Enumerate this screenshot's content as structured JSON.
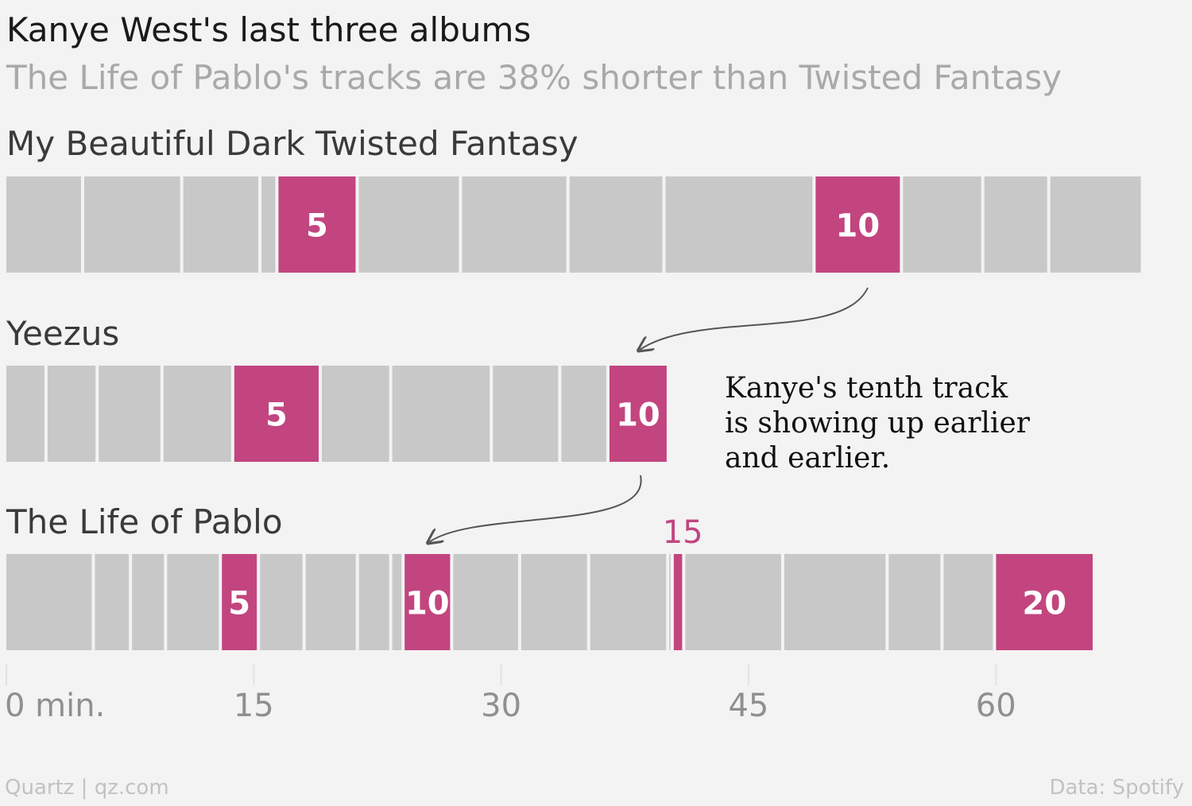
{
  "title": "Kanye West's last three albums",
  "subtitle": "The Life of Pablo's tracks are 38% shorter than Twisted Fantasy",
  "footer": {
    "source_left": "Quartz | qz.com",
    "source_right": "Data: Spotify"
  },
  "annotation": {
    "lines": [
      "Kanye's tenth track",
      "is showing up earlier",
      "and earlier."
    ]
  },
  "colors": {
    "background": "#f3f3f3",
    "track": "#c8c8c8",
    "highlight": "#c2457f",
    "divider": "#f3f3f3",
    "arrow": "#555555"
  },
  "chart_data": {
    "type": "bar",
    "orientation": "horizontal-stacked",
    "x_unit": "min.",
    "xlim": [
      0,
      69
    ],
    "x_ticks": [
      {
        "value": 0,
        "label": "0 min."
      },
      {
        "value": 15,
        "label": "15"
      },
      {
        "value": 30,
        "label": "30"
      },
      {
        "value": 45,
        "label": "45"
      },
      {
        "value": 60,
        "label": "60"
      }
    ],
    "grid": false,
    "highlight_tracks": [
      5,
      10,
      15,
      20
    ],
    "series": [
      {
        "name": "My Beautiful Dark Twisted Fantasy",
        "track_start_minutes": [
          0,
          4.72,
          10.73,
          15.47,
          16.5,
          21.37,
          27.63,
          34.15,
          39.97,
          49.07,
          54.37,
          59.3,
          63.3,
          68.98
        ],
        "highlighted": [
          {
            "track": 5,
            "label": "5"
          },
          {
            "track": 10,
            "label": "10"
          }
        ]
      },
      {
        "name": "Yeezus",
        "track_start_minutes": [
          0,
          2.5,
          5.6,
          9.53,
          13.82,
          19.13,
          23.4,
          29.5,
          33.65,
          36.57,
          40.23
        ],
        "highlighted": [
          {
            "track": 5,
            "label": "5"
          },
          {
            "track": 10,
            "label": "10"
          }
        ]
      },
      {
        "name": "The Life of Pablo",
        "track_start_minutes": [
          0,
          5.37,
          7.62,
          9.75,
          13.07,
          15.38,
          18.15,
          21.38,
          23.4,
          24.15,
          27.1,
          31.22,
          35.4,
          40.2,
          40.47,
          41.17,
          47.17,
          53.5,
          56.83,
          60.01,
          66.06
        ],
        "highlighted": [
          {
            "track": 5,
            "label": "5"
          },
          {
            "track": 10,
            "label": "10"
          },
          {
            "track": 15,
            "label": "15",
            "label_position": "above"
          },
          {
            "track": 20,
            "label": "20"
          }
        ]
      }
    ]
  }
}
